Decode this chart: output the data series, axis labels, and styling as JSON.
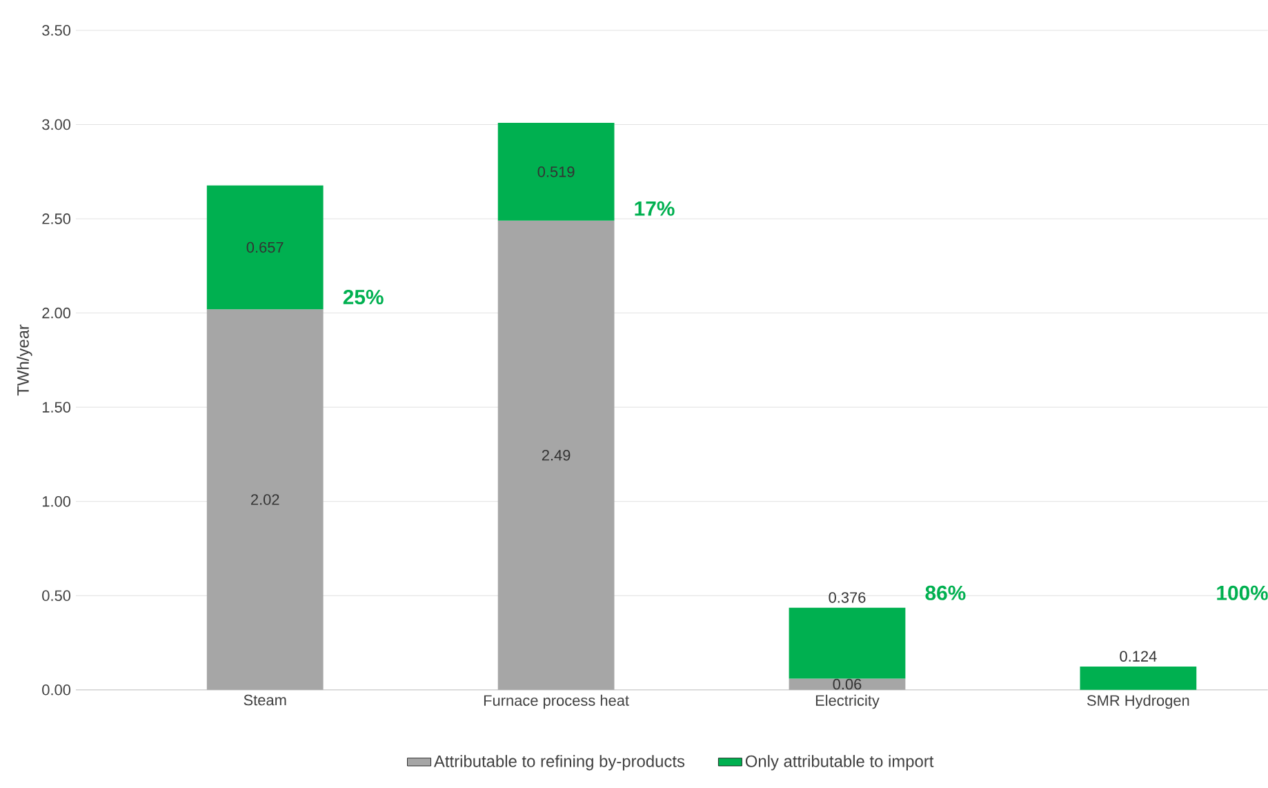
{
  "chart_data": {
    "type": "bar",
    "stacked": true,
    "ylabel": "TWh/year",
    "categories": [
      "Steam",
      "Furnace process heat",
      "Electricity",
      "SMR Hydrogen"
    ],
    "series": [
      {
        "name": "Attributable to refining by-products",
        "color": "#a6a6a6",
        "values": [
          2.02,
          2.49,
          0.06,
          null
        ]
      },
      {
        "name": "Only attributable to import",
        "color": "#00b050",
        "values": [
          0.657,
          0.519,
          0.376,
          0.124
        ]
      }
    ],
    "data_labels": true,
    "ylim": [
      0,
      3.5
    ],
    "yticks": [
      {
        "value": 0,
        "label": "0.00"
      },
      {
        "value": 0.5,
        "label": "0.50"
      },
      {
        "value": 1,
        "label": "1.00"
      },
      {
        "value": 1.5,
        "label": "1.50"
      },
      {
        "value": 2,
        "label": "2.00"
      },
      {
        "value": 2.5,
        "label": "2.50"
      },
      {
        "value": 3,
        "label": "3.00"
      },
      {
        "value": 3.5,
        "label": "3.50"
      }
    ],
    "grid": "y",
    "legend": "bottom",
    "annotations": [
      "25%",
      "17%",
      "86%",
      "100%"
    ]
  }
}
